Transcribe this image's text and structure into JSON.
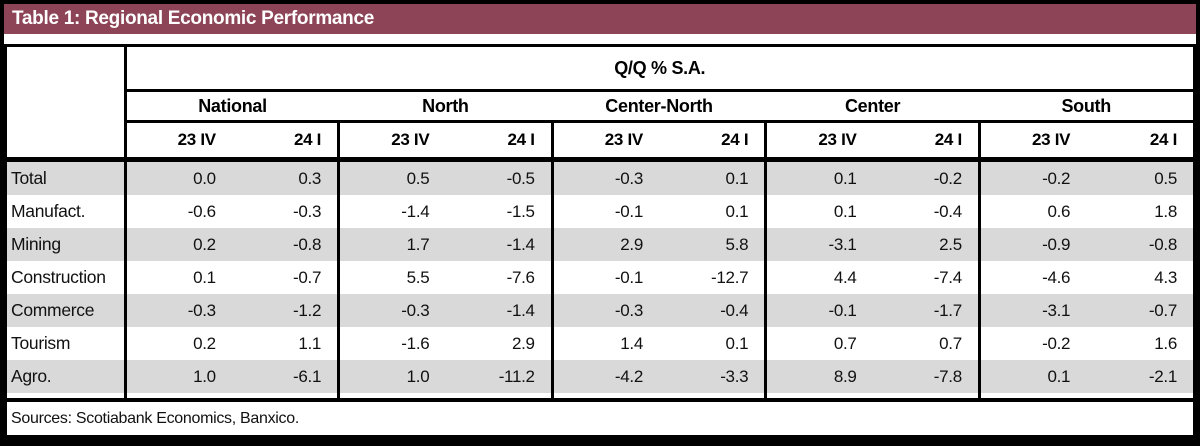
{
  "title": "Table 1: Regional Economic Performance",
  "table": {
    "span_header": "Q/Q % S.A.",
    "regions": [
      "National",
      "North",
      "Center-North",
      "Center",
      "South"
    ],
    "periods": [
      "23 IV",
      "24 I"
    ],
    "rows": [
      {
        "label": "Total",
        "values": [
          "0.0",
          "0.3",
          "0.5",
          "-0.5",
          "-0.3",
          "0.1",
          "0.1",
          "-0.2",
          "-0.2",
          "0.5"
        ]
      },
      {
        "label": "Manufact.",
        "values": [
          "-0.6",
          "-0.3",
          "-1.4",
          "-1.5",
          "-0.1",
          "0.1",
          "0.1",
          "-0.4",
          "0.6",
          "1.8"
        ]
      },
      {
        "label": "Mining",
        "values": [
          "0.2",
          "-0.8",
          "1.7",
          "-1.4",
          "2.9",
          "5.8",
          "-3.1",
          "2.5",
          "-0.9",
          "-0.8"
        ]
      },
      {
        "label": "Construction",
        "values": [
          "0.1",
          "-0.7",
          "5.5",
          "-7.6",
          "-0.1",
          "-12.7",
          "4.4",
          "-7.4",
          "-4.6",
          "4.3"
        ]
      },
      {
        "label": "Commerce",
        "values": [
          "-0.3",
          "-1.2",
          "-0.3",
          "-1.4",
          "-0.3",
          "-0.4",
          "-0.1",
          "-1.7",
          "-3.1",
          "-0.7"
        ]
      },
      {
        "label": "Tourism",
        "values": [
          "0.2",
          "1.1",
          "-1.6",
          "2.9",
          "1.4",
          "0.1",
          "0.7",
          "0.7",
          "-0.2",
          "1.6"
        ]
      },
      {
        "label": "Agro.",
        "values": [
          "1.0",
          "-6.1",
          "1.0",
          "-11.2",
          "-4.2",
          "-3.3",
          "8.9",
          "-7.8",
          "0.1",
          "-2.1"
        ]
      }
    ],
    "footer": "Sources: Scotiabank Economics, Banxico."
  },
  "colors": {
    "accent": "#8d4457",
    "stripe": "#d9d9d9",
    "border": "#000000"
  }
}
